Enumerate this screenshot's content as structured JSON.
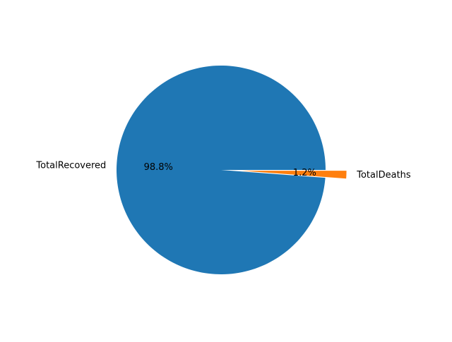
{
  "chart_data": {
    "type": "pie",
    "slices": [
      {
        "label": "TotalRecovered",
        "value": 98.8,
        "percent_label": "98.8%",
        "color": "#1f77b4",
        "explode": 0
      },
      {
        "label": "TotalDeaths",
        "value": 1.2,
        "percent_label": "1.2%",
        "color": "#ff7f0e",
        "explode": 0.2
      }
    ],
    "start_angle": 0,
    "counterclock": true,
    "legend": "none"
  }
}
